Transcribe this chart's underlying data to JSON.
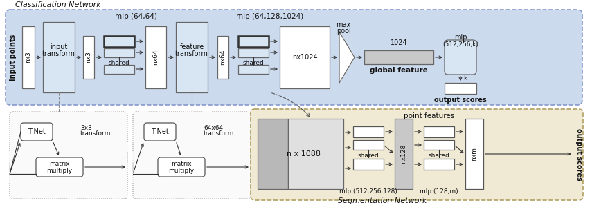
{
  "fig_width": 8.55,
  "fig_height": 3.13,
  "dpi": 100,
  "bg_color": "#ffffff",
  "blue_bg": "#ccdaee",
  "yellow_bg": "#f0ead5",
  "blue_box": "#d8e6f4",
  "white_box": "#ffffff",
  "gray_box": "#c8c8c8",
  "classification_label": "Classification Network",
  "segmentation_label": "Segmentation Network",
  "input_points_label": "input points",
  "output_scores_cls": "output scores",
  "output_scores_seg": "output scores",
  "global_feature_label": "global feature",
  "point_features_label": "point features",
  "edge_color": "#666666",
  "arrow_color": "#333333"
}
